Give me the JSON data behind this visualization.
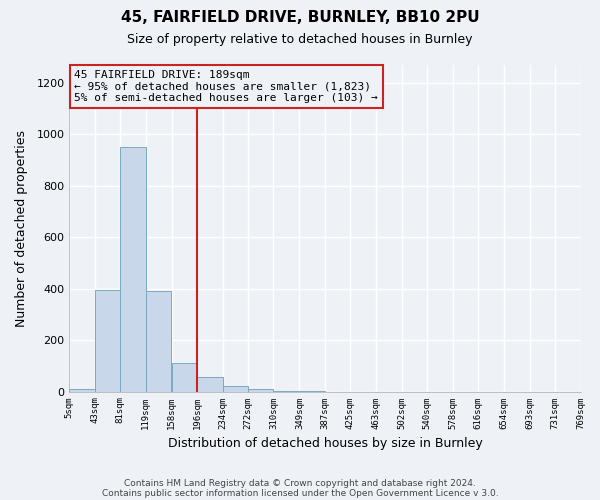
{
  "title": "45, FAIRFIELD DRIVE, BURNLEY, BB10 2PU",
  "subtitle": "Size of property relative to detached houses in Burnley",
  "xlabel": "Distribution of detached houses by size in Burnley",
  "ylabel": "Number of detached properties",
  "bar_left_edges": [
    5,
    43,
    81,
    119,
    158,
    196,
    234,
    272,
    310,
    349,
    387,
    425,
    463,
    502,
    540,
    578,
    616,
    654,
    693,
    731
  ],
  "bar_heights": [
    10,
    395,
    950,
    390,
    110,
    55,
    22,
    8,
    3,
    1,
    0,
    0,
    0,
    0,
    0,
    0,
    0,
    0,
    0,
    0
  ],
  "bin_width": 38,
  "bar_color": "#c8d8ea",
  "bar_edge_color": "#7aaabf",
  "tick_labels": [
    "5sqm",
    "43sqm",
    "81sqm",
    "119sqm",
    "158sqm",
    "196sqm",
    "234sqm",
    "272sqm",
    "310sqm",
    "349sqm",
    "387sqm",
    "425sqm",
    "463sqm",
    "502sqm",
    "540sqm",
    "578sqm",
    "616sqm",
    "654sqm",
    "693sqm",
    "731sqm",
    "769sqm"
  ],
  "vline_x": 196,
  "vline_color": "#cc2222",
  "annotation_line1": "45 FAIRFIELD DRIVE: 189sqm",
  "annotation_line2": "← 95% of detached houses are smaller (1,823)",
  "annotation_line3": "5% of semi-detached houses are larger (103) →",
  "annotation_box_edge": "#cc2222",
  "ylim": [
    0,
    1270
  ],
  "yticks": [
    0,
    200,
    400,
    600,
    800,
    1000,
    1200
  ],
  "footer_line1": "Contains HM Land Registry data © Crown copyright and database right 2024.",
  "footer_line2": "Contains public sector information licensed under the Open Government Licence v 3.0.",
  "bg_color": "#eef2f7",
  "plot_bg_color": "#eef2f7",
  "grid_color": "#ffffff"
}
